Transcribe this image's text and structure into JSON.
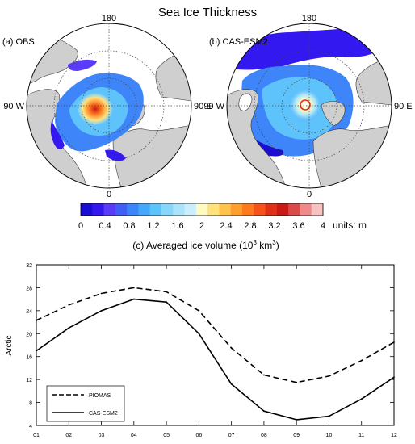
{
  "figure_title": "Sea Ice Thickness",
  "maps": [
    {
      "label": "(a) OBS",
      "lon_top": "180",
      "lon_bottom": "0",
      "lon_left": "90 W",
      "lon_right": "90 E"
    },
    {
      "label": "(b) CAS-ESM2",
      "lon_top": "180",
      "lon_bottom": "0",
      "lon_left": "90 W",
      "lon_right": "90 E"
    }
  ],
  "colorbar": {
    "min": 0,
    "max": 4,
    "tick_labels": [
      "0",
      "0.4",
      "0.8",
      "1.2",
      "1.6",
      "2",
      "2.4",
      "2.8",
      "3.2",
      "3.6",
      "4"
    ],
    "units_label": "units: m",
    "colors": [
      "#1a0fd0",
      "#3418f0",
      "#5a3cf8",
      "#3f5ff5",
      "#3d85f8",
      "#45a8fb",
      "#5fc3fb",
      "#86d7fb",
      "#a9e4fa",
      "#c9eefc",
      "#fff9c4",
      "#ffe27a",
      "#ffc24a",
      "#ff9e2c",
      "#ff7a1f",
      "#f5531b",
      "#e03018",
      "#c91a16",
      "#d94a4a",
      "#ef8a8a",
      "#f9c2c2"
    ]
  },
  "chart_data": {
    "type": "line",
    "title": "(c) Averaged ice volume (10",
    "title_exponent": "3",
    "title_unit": " km",
    "title_unit_exponent": "3",
    "title_close": ")",
    "ylabel": "Arctic",
    "xlabel": "",
    "categories": [
      "01",
      "02",
      "03",
      "04",
      "05",
      "06",
      "07",
      "08",
      "09",
      "10",
      "11",
      "12"
    ],
    "ylim": [
      4,
      32
    ],
    "yticks": [
      4,
      8,
      12,
      16,
      20,
      24,
      28,
      32
    ],
    "grid": false,
    "legend_position": "bottom-left",
    "series": [
      {
        "name": "PIOMAS",
        "style": "dashed",
        "values": [
          22.3,
          25.0,
          27.0,
          28.0,
          27.3,
          24.0,
          17.5,
          12.8,
          11.5,
          12.6,
          15.3,
          18.5
        ]
      },
      {
        "name": "CAS-ESM2",
        "style": "solid",
        "values": [
          17.0,
          21.0,
          24.0,
          26.0,
          25.5,
          20.0,
          11.2,
          6.5,
          5.0,
          5.6,
          8.6,
          12.4
        ]
      }
    ]
  }
}
